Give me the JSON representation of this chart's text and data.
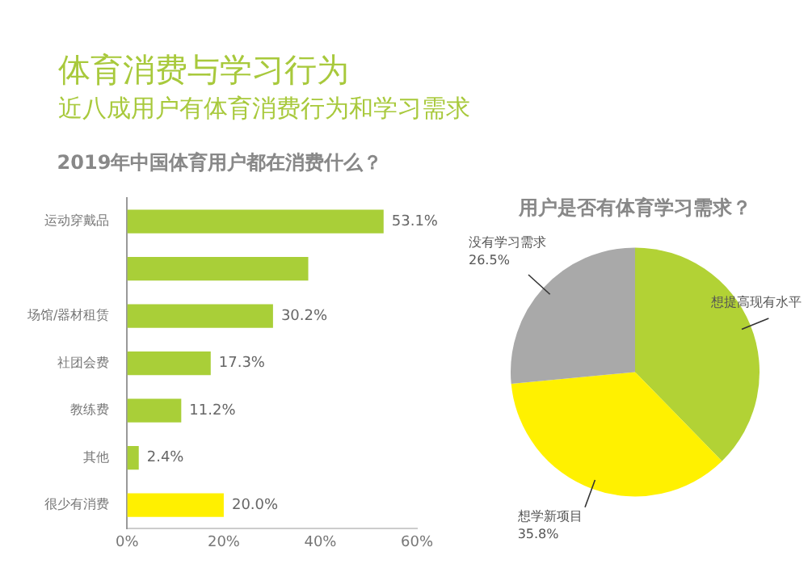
{
  "chart_data": [
    {
      "type": "other",
      "title": "体育消费与学习行为",
      "subtitle": "近八成用户有体育消费行为和学习需求"
    },
    {
      "type": "bar",
      "orientation": "horizontal",
      "title": "2019年中国体育用户都在消费什么？",
      "categories": [
        "运动穿戴品",
        null,
        "场馆/器材租赁",
        "社团会费",
        "教练费",
        "其他",
        "很少有消费"
      ],
      "values": [
        53.1,
        37.5,
        30.2,
        17.3,
        11.2,
        2.4,
        20.0
      ],
      "colors": [
        "#a9cf38",
        "#a9cf38",
        "#a9cf38",
        "#a9cf38",
        "#a9cf38",
        "#a9cf38",
        "#fff000"
      ],
      "value_labels": [
        "53.1%",
        null,
        "30.2%",
        "17.3%",
        "11.2%",
        "2.4%",
        "20.0%"
      ],
      "xlim": [
        0,
        60
      ],
      "xticks": [
        {
          "value": 0,
          "label": "0%"
        },
        {
          "value": 20,
          "label": "20%"
        },
        {
          "value": 40,
          "label": "40%"
        },
        {
          "value": 60,
          "label": "60%"
        }
      ],
      "legend": false
    },
    {
      "type": "pie",
      "title": "用户是否有体育学习需求？",
      "categories": [
        "想提高现有水平",
        "想学新项目",
        "没有学习需求"
      ],
      "values": [
        37.7,
        35.8,
        26.5
      ],
      "colors": [
        "#b2d235",
        "#fff100",
        "#a9a9a9"
      ],
      "value_labels": [
        null,
        "35.8%",
        "26.5%"
      ],
      "legend": false
    }
  ]
}
